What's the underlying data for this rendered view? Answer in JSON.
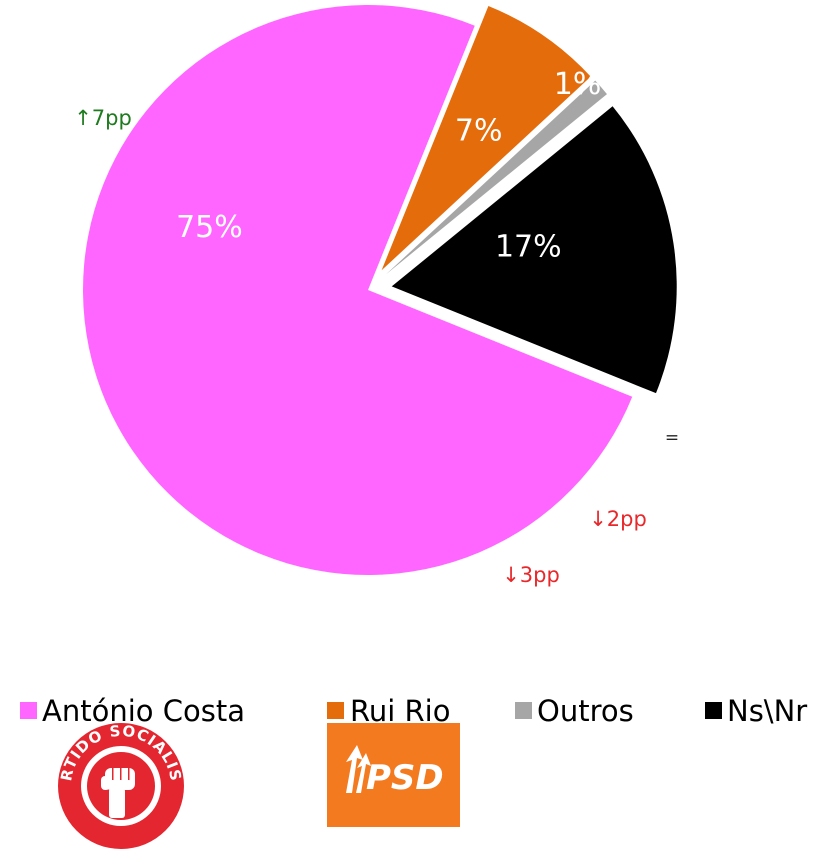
{
  "colors": {
    "antonio_costa": "#FF66FF",
    "rui_rio": "#E46C0A",
    "outros": "#A6A6A6",
    "ns_nr": "#000000",
    "up": "#1E7B1E",
    "down": "#E8282B",
    "neutral": "#222222",
    "ps_red": "#E3262F",
    "psd_orange": "#F47A20"
  },
  "chart_data": {
    "type": "pie",
    "title": "",
    "start_angle_deg": 22,
    "clockwise": true,
    "legend_position": "bottom",
    "slices": [
      {
        "name": "Rui Rio",
        "value": 7,
        "label": "7%",
        "color": "#E46C0A",
        "change": "↓2pp",
        "trend": "down",
        "exploded": true
      },
      {
        "name": "Outros",
        "value": 1,
        "label": "1%",
        "color": "#A6A6A6",
        "change": "=",
        "trend": "neutral",
        "exploded": true
      },
      {
        "name": "Ns\\Nr",
        "value": 17,
        "label": "17%",
        "color": "#000000",
        "change": "↓3pp",
        "trend": "down",
        "exploded": true
      },
      {
        "name": "António Costa",
        "value": 75,
        "label": "75%",
        "color": "#FF66FF",
        "change": "↑7pp",
        "trend": "up",
        "exploded": false
      }
    ],
    "legend": [
      "António Costa",
      "Rui Rio",
      "Outros",
      "Ns\\Nr"
    ]
  },
  "logos": {
    "ps": {
      "name": "PS logo",
      "text": "PARTIDO SOCIALISTA"
    },
    "psd": {
      "name": "PSD logo",
      "text": "PSD"
    }
  }
}
